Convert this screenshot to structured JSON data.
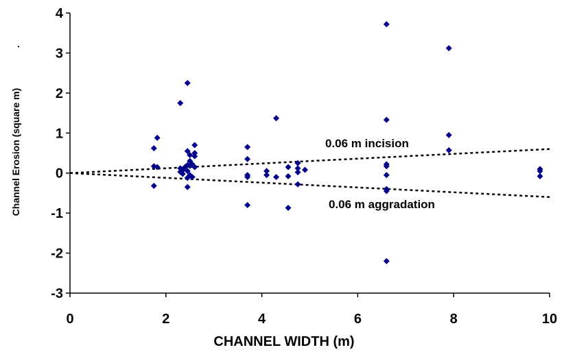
{
  "chart_data": {
    "type": "scatter",
    "title": "",
    "xlabel": "CHANNEL WIDTH (m)",
    "ylabel": "Channel Erosion (square m)",
    "ylabel_mark": ".",
    "xlim": [
      0,
      10
    ],
    "ylim": [
      -3,
      4
    ],
    "xticks": [
      "0",
      "2",
      "4",
      "6",
      "8",
      "10"
    ],
    "yticks": [
      "-3",
      "-2",
      "-1",
      "0",
      "1",
      "2",
      "3",
      "4"
    ],
    "grid": false,
    "legend": "none",
    "marker_color": "#00008B",
    "series": [
      {
        "points": [
          [
            1.75,
            0.62
          ],
          [
            1.75,
            0.17
          ],
          [
            1.75,
            -0.32
          ],
          [
            1.82,
            0.88
          ],
          [
            1.82,
            0.15
          ],
          [
            2.3,
            1.75
          ],
          [
            2.3,
            0.12
          ],
          [
            2.3,
            0.03
          ],
          [
            2.35,
            0.07
          ],
          [
            2.35,
            -0.02
          ],
          [
            2.4,
            0.15
          ],
          [
            2.45,
            2.25
          ],
          [
            2.45,
            0.55
          ],
          [
            2.45,
            0.2
          ],
          [
            2.45,
            0.05
          ],
          [
            2.45,
            -0.12
          ],
          [
            2.45,
            -0.35
          ],
          [
            2.5,
            0.45
          ],
          [
            2.5,
            0.3
          ],
          [
            2.5,
            0.18
          ],
          [
            2.5,
            -0.05
          ],
          [
            2.55,
            0.22
          ],
          [
            2.55,
            -0.1
          ],
          [
            2.6,
            0.7
          ],
          [
            2.6,
            0.5
          ],
          [
            2.6,
            0.42
          ],
          [
            2.6,
            0.15
          ],
          [
            3.7,
            0.65
          ],
          [
            3.7,
            0.35
          ],
          [
            3.7,
            -0.05
          ],
          [
            3.7,
            -0.1
          ],
          [
            3.7,
            -0.8
          ],
          [
            4.1,
            0.05
          ],
          [
            4.1,
            -0.05
          ],
          [
            4.3,
            1.37
          ],
          [
            4.3,
            -0.1
          ],
          [
            4.55,
            0.15
          ],
          [
            4.55,
            -0.08
          ],
          [
            4.55,
            -0.87
          ],
          [
            4.75,
            0.25
          ],
          [
            4.75,
            0.12
          ],
          [
            4.75,
            0.02
          ],
          [
            4.75,
            -0.28
          ],
          [
            4.9,
            0.08
          ],
          [
            6.6,
            3.72
          ],
          [
            6.6,
            1.33
          ],
          [
            6.6,
            0.22
          ],
          [
            6.6,
            0.17
          ],
          [
            6.6,
            -0.05
          ],
          [
            6.6,
            -0.4
          ],
          [
            6.6,
            -0.45
          ],
          [
            6.6,
            -2.2
          ],
          [
            7.9,
            3.12
          ],
          [
            7.9,
            0.95
          ],
          [
            7.9,
            0.57
          ],
          [
            9.8,
            0.1
          ],
          [
            9.8,
            0.05
          ],
          [
            9.8,
            -0.08
          ]
        ]
      }
    ],
    "reference_lines": [
      {
        "label": "0.06 m incision",
        "x": [
          0,
          10
        ],
        "y": [
          0,
          0.6
        ]
      },
      {
        "label": "0.06 m aggradation",
        "x": [
          0,
          10
        ],
        "y": [
          0,
          -0.6
        ]
      }
    ]
  }
}
